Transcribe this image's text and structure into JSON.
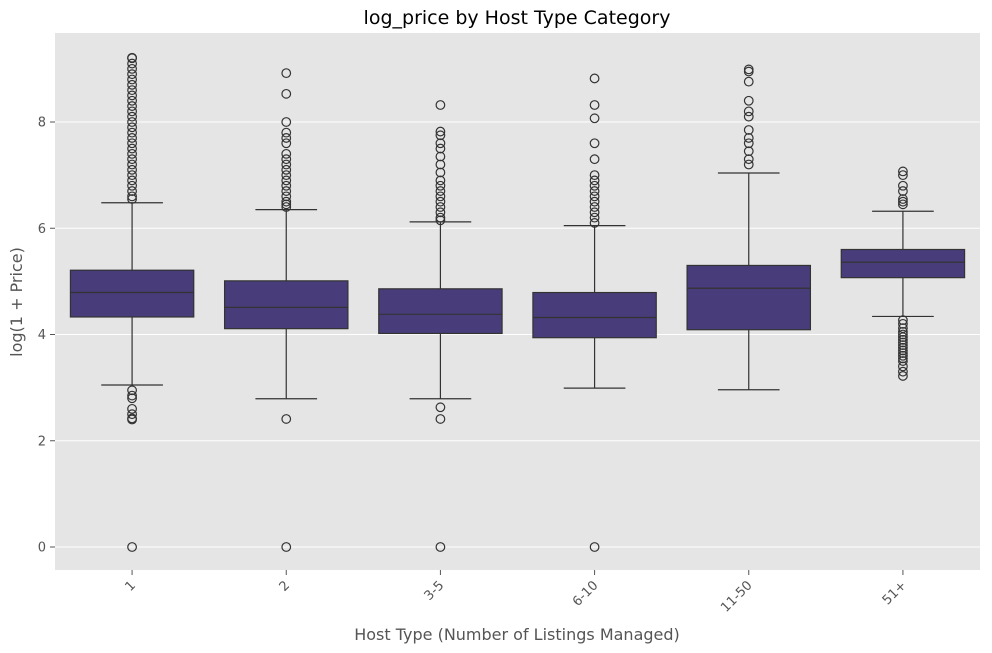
{
  "chart_data": {
    "type": "box",
    "title": "log_price by Host Type Category",
    "xlabel": "Host Type (Number of Listings Managed)",
    "ylabel": "log(1 + Price)",
    "ylim": [
      -0.43,
      9.75
    ],
    "yticks": [
      "0",
      "2",
      "4",
      "6",
      "8"
    ],
    "grid": true,
    "colors": {
      "box": "#483d7a",
      "line": "#333333",
      "background": "#e5e5e5",
      "grid": "#ffffff"
    },
    "categories": [
      "1",
      "2",
      "3-5",
      "6-10",
      "11-50",
      "51+"
    ],
    "boxes": [
      {
        "category": "1",
        "q1": 4.33,
        "median": 4.79,
        "q3": 5.21,
        "whisker_low": 3.05,
        "whisker_high": 6.48,
        "outliers": [
          9.21,
          9.2,
          9.1,
          9.0,
          8.9,
          8.8,
          8.7,
          8.6,
          8.5,
          8.4,
          8.3,
          8.2,
          8.1,
          8.0,
          7.9,
          7.8,
          7.7,
          7.6,
          7.5,
          7.4,
          7.3,
          7.2,
          7.1,
          7.0,
          6.9,
          6.8,
          6.7,
          6.6,
          6.55,
          2.95,
          2.85,
          2.8,
          2.6,
          2.5,
          2.42,
          2.4,
          0.0
        ]
      },
      {
        "category": "2",
        "q1": 4.11,
        "median": 4.51,
        "q3": 5.01,
        "whisker_low": 2.79,
        "whisker_high": 6.35,
        "outliers": [
          8.92,
          8.53,
          8.0,
          7.8,
          7.7,
          7.6,
          7.4,
          7.3,
          7.2,
          7.1,
          7.0,
          6.9,
          6.8,
          6.7,
          6.6,
          6.5,
          6.45,
          6.4,
          2.41,
          0.0
        ]
      },
      {
        "category": "3-5",
        "q1": 4.02,
        "median": 4.38,
        "q3": 4.86,
        "whisker_low": 2.79,
        "whisker_high": 6.12,
        "outliers": [
          8.32,
          7.82,
          7.75,
          7.6,
          7.5,
          7.35,
          7.2,
          7.05,
          6.9,
          6.8,
          6.7,
          6.6,
          6.5,
          6.4,
          6.3,
          6.2,
          6.15,
          2.63,
          2.41,
          0.0
        ]
      },
      {
        "category": "6-10",
        "q1": 3.94,
        "median": 4.32,
        "q3": 4.79,
        "whisker_low": 2.99,
        "whisker_high": 6.05,
        "outliers": [
          8.82,
          8.32,
          8.07,
          7.6,
          7.3,
          7.0,
          6.9,
          6.8,
          6.7,
          6.6,
          6.5,
          6.4,
          6.3,
          6.2,
          6.1,
          0.0
        ]
      },
      {
        "category": "11-50",
        "q1": 4.09,
        "median": 4.87,
        "q3": 5.3,
        "whisker_low": 2.96,
        "whisker_high": 7.04,
        "outliers": [
          8.99,
          8.95,
          8.76,
          8.4,
          8.2,
          8.1,
          7.85,
          7.7,
          7.6,
          7.45,
          7.3,
          7.2
        ]
      },
      {
        "category": "51+",
        "q1": 5.07,
        "median": 5.36,
        "q3": 5.6,
        "whisker_low": 4.34,
        "whisker_high": 6.32,
        "outliers": [
          7.07,
          7.0,
          6.8,
          6.7,
          6.55,
          6.5,
          6.45,
          4.27,
          4.2,
          4.12,
          4.05,
          4.0,
          3.95,
          3.9,
          3.85,
          3.8,
          3.75,
          3.7,
          3.65,
          3.6,
          3.55,
          3.5,
          3.4,
          3.3,
          3.22
        ]
      }
    ]
  }
}
